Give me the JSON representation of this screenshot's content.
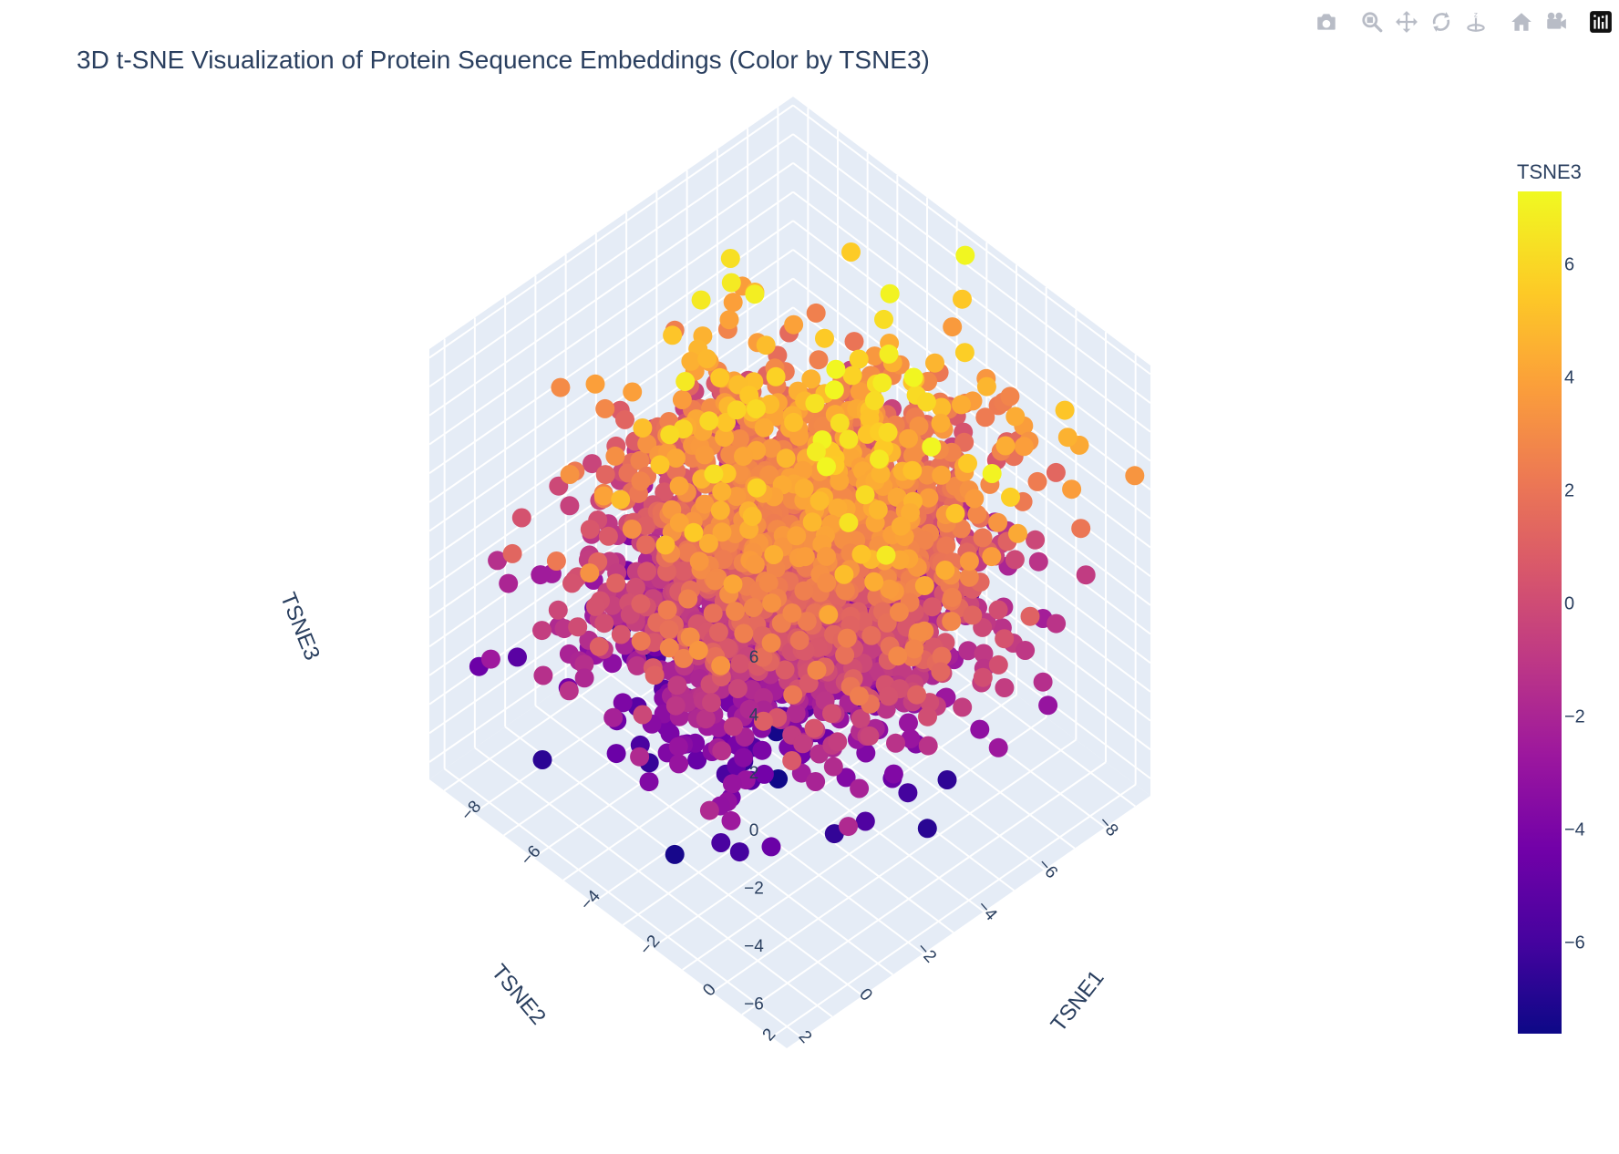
{
  "modebar": {
    "buttons": [
      {
        "name": "download-plot-icon",
        "label": "Download plot as a png"
      },
      {
        "name": "zoom-icon",
        "label": "Zoom"
      },
      {
        "name": "pan-icon",
        "label": "Pan"
      },
      {
        "name": "orbit-rotation-icon",
        "label": "Orbital rotation"
      },
      {
        "name": "turntable-rotation-icon",
        "label": "Turntable rotation"
      },
      {
        "name": "reset-camera-icon",
        "label": "Reset camera to default"
      },
      {
        "name": "last-save-camera-icon",
        "label": "Reset camera to last save"
      },
      {
        "name": "plotly-logo-icon",
        "label": "Produced with Plotly"
      }
    ]
  },
  "colors": {
    "scene_bg": "#e5ecf6",
    "grid": "#ffffff",
    "text": "#2a3f5f",
    "colorscale": [
      "#0d0887",
      "#46039f",
      "#7201a8",
      "#9c179e",
      "#bd3786",
      "#d8576b",
      "#ed7953",
      "#fb9f3a",
      "#fdca26",
      "#f0f921"
    ]
  },
  "chart_data": {
    "type": "scatter3d",
    "title": "3D t-SNE Visualization of Protein Sequence Embeddings (Color by TSNE3)",
    "xlabel": "TSNE1",
    "ylabel": "TSNE2",
    "zlabel": "TSNE3",
    "xlim": [
      -8.5,
      3.5
    ],
    "ylim": [
      -8.5,
      3.5
    ],
    "zlim": [
      -7.6,
      7.3
    ],
    "x_ticks": [
      -8,
      -6,
      -4,
      -2,
      0,
      2
    ],
    "y_ticks": [
      -8,
      -6,
      -4,
      -2,
      0,
      2
    ],
    "z_ticks": [
      -6,
      -4,
      -2,
      0,
      2,
      4,
      6
    ],
    "x_tick_labels": [
      "−8",
      "−6",
      "−4",
      "−2",
      "0",
      "2"
    ],
    "y_tick_labels": [
      "−8",
      "−6",
      "−4",
      "−2",
      "0",
      "2"
    ],
    "z_tick_labels": [
      "−6",
      "−4",
      "−2",
      "0",
      "2",
      "4",
      "6"
    ],
    "color_by": "TSNE3",
    "colorbar": {
      "title": "TSNE3",
      "range": [
        -7.6,
        7.3
      ],
      "ticks": [
        6,
        4,
        2,
        0,
        -2,
        -4,
        -6
      ],
      "tick_labels": [
        "6",
        "4",
        "2",
        "0",
        "−2",
        "−4",
        "−6"
      ]
    },
    "n_points": 2600,
    "cluster": {
      "center_x": -2.3,
      "center_y": -2.6,
      "center_z": 0.3,
      "spread_x": 2.3,
      "spread_y": 2.2,
      "spread_z": 2.9
    },
    "outliers": [
      {
        "x": -2.5,
        "y": -5.8,
        "z": 7.1
      },
      {
        "x": -4.8,
        "y": -3.6,
        "z": 6.9
      },
      {
        "x": -0.8,
        "y": -6.6,
        "z": 5.8
      },
      {
        "x": -5.8,
        "y": -1.8,
        "z": -6.5
      },
      {
        "x": -2.6,
        "y": 1.2,
        "z": -7.3
      },
      {
        "x": 1.2,
        "y": -3.4,
        "z": -6.8
      },
      {
        "x": -6.8,
        "y": -4.9,
        "z": -3.1
      },
      {
        "x": -6.2,
        "y": -6.8,
        "z": -5.4
      }
    ]
  }
}
